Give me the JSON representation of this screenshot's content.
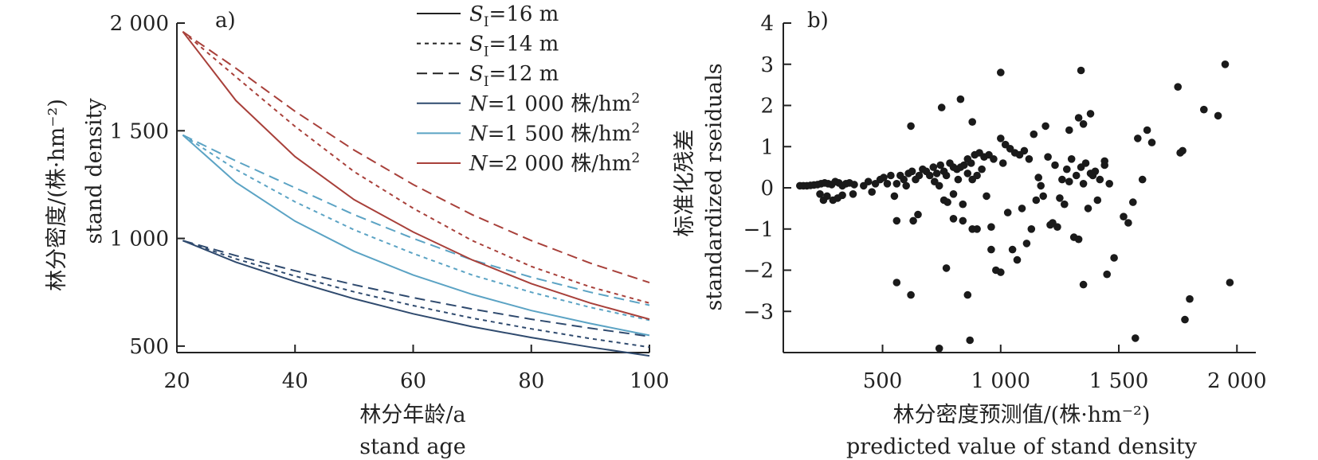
{
  "chart_data": [
    {
      "type": "line",
      "panel_label": "a)",
      "xlabel_cn": "林分年龄/a",
      "xlabel_en": "stand age",
      "ylabel_cn": "林分密度/(株·hm⁻²)",
      "ylabel_en": "stand density",
      "xlim": [
        20,
        100
      ],
      "ylim": [
        470,
        2000
      ],
      "xticks": [
        20,
        40,
        60,
        80,
        100
      ],
      "xtick_labels": [
        "20",
        "40",
        "60",
        "80",
        "100"
      ],
      "yticks": [
        500,
        1000,
        1500,
        2000
      ],
      "ytick_labels": [
        "500",
        "1 000",
        "1 500",
        "2 000"
      ],
      "grid": false,
      "legend_position": "top-right",
      "legend": [
        {
          "prefix": "S",
          "sub": "I",
          "text": "=16 m",
          "dash": "solid",
          "color": "#222222"
        },
        {
          "prefix": "S",
          "sub": "I",
          "text": "=14 m",
          "dash": "dotted",
          "color": "#222222"
        },
        {
          "prefix": "S",
          "sub": "I",
          "text": "=12 m",
          "dash": "dashed",
          "color": "#222222"
        },
        {
          "prefix": "N",
          "text": "=1 000 株/hm",
          "sup": "2",
          "dash": "solid",
          "color": "#2f4a6e"
        },
        {
          "prefix": "N",
          "text": "=1 500 株/hm",
          "sup": "2",
          "dash": "solid",
          "color": "#5ba3c4"
        },
        {
          "prefix": "N",
          "text": "=2 000 株/hm",
          "sup": "2",
          "dash": "solid",
          "color": "#a8403a"
        }
      ],
      "x": [
        21,
        30,
        40,
        50,
        60,
        70,
        80,
        90,
        100
      ],
      "series": [
        {
          "name": "N=1 000 株/hm² S_I=16 m",
          "color": "#2f4a6e",
          "dash": "solid",
          "values": [
            990,
            890,
            800,
            720,
            650,
            590,
            540,
            495,
            455
          ]
        },
        {
          "name": "N=1 000 株/hm² S_I=14 m",
          "color": "#2f4a6e",
          "dash": "dotted",
          "values": [
            990,
            905,
            825,
            752,
            688,
            630,
            580,
            535,
            495
          ]
        },
        {
          "name": "N=1 000 株/hm² S_I=12 m",
          "color": "#2f4a6e",
          "dash": "dashed",
          "values": [
            990,
            920,
            850,
            785,
            725,
            672,
            625,
            583,
            545
          ]
        },
        {
          "name": "N=1 500 株/hm² S_I=16 m",
          "color": "#5ba3c4",
          "dash": "solid",
          "values": [
            1480,
            1260,
            1080,
            940,
            830,
            740,
            665,
            605,
            550
          ]
        },
        {
          "name": "N=1 500 株/hm² S_I=14 m",
          "color": "#5ba3c4",
          "dash": "dotted",
          "values": [
            1480,
            1320,
            1170,
            1040,
            930,
            830,
            750,
            680,
            620
          ]
        },
        {
          "name": "N=1 500 株/hm² S_I=12 m",
          "color": "#5ba3c4",
          "dash": "dashed",
          "values": [
            1480,
            1360,
            1235,
            1110,
            1000,
            900,
            820,
            750,
            690
          ]
        },
        {
          "name": "N=2 000 株/hm² S_I=16 m",
          "color": "#a8403a",
          "dash": "solid",
          "values": [
            1960,
            1640,
            1380,
            1180,
            1030,
            900,
            790,
            700,
            625
          ]
        },
        {
          "name": "N=2 000 株/hm² S_I=14 m",
          "color": "#a8403a",
          "dash": "dotted",
          "values": [
            1960,
            1750,
            1520,
            1310,
            1140,
            990,
            870,
            775,
            700
          ]
        },
        {
          "name": "N=2 000 株/hm² S_I=12 m",
          "color": "#a8403a",
          "dash": "dashed",
          "values": [
            1960,
            1790,
            1590,
            1410,
            1250,
            1110,
            990,
            885,
            795
          ]
        }
      ]
    },
    {
      "type": "scatter",
      "panel_label": "b)",
      "xlabel_cn": "林分密度预测值/(株·hm⁻²)",
      "xlabel_en": "predicted value of stand density",
      "ylabel_cn": "标准化残差",
      "ylabel_en": "standardized rseiduals",
      "xlim": [
        80,
        2080
      ],
      "ylim": [
        -4,
        4
      ],
      "xticks": [
        500,
        1000,
        1500,
        2000
      ],
      "xtick_labels": [
        "500",
        "1 000",
        "1 500",
        "2 000"
      ],
      "yticks": [
        -3,
        -2,
        -1,
        0,
        1,
        2,
        3,
        4
      ],
      "ytick_labels": [
        "−3",
        "−2",
        "−1",
        "0",
        "1",
        "2",
        "3",
        "4"
      ],
      "grid": false,
      "point_color": "#1a1a1a",
      "points": [
        [
          150,
          0.05
        ],
        [
          165,
          0.05
        ],
        [
          180,
          0.05
        ],
        [
          195,
          0.06
        ],
        [
          210,
          0.07
        ],
        [
          225,
          0.08
        ],
        [
          240,
          0.1
        ],
        [
          255,
          0.12
        ],
        [
          270,
          0.1
        ],
        [
          285,
          0.08
        ],
        [
          300,
          0.15
        ],
        [
          315,
          0.12
        ],
        [
          330,
          0.05
        ],
        [
          345,
          0.1
        ],
        [
          360,
          0.12
        ],
        [
          380,
          0.08
        ],
        [
          235,
          -0.15
        ],
        [
          250,
          -0.3
        ],
        [
          265,
          -0.2
        ],
        [
          290,
          -0.3
        ],
        [
          310,
          -0.25
        ],
        [
          330,
          -0.18
        ],
        [
          375,
          -0.15
        ],
        [
          420,
          0.05
        ],
        [
          440,
          0.15
        ],
        [
          455,
          -0.1
        ],
        [
          470,
          0.1
        ],
        [
          490,
          0.2
        ],
        [
          505,
          0.25
        ],
        [
          520,
          0.1
        ],
        [
          535,
          0.3
        ],
        [
          550,
          -0.2
        ],
        [
          560,
          0.1
        ],
        [
          575,
          0.3
        ],
        [
          590,
          0.2
        ],
        [
          600,
          0.05
        ],
        [
          610,
          0.35
        ],
        [
          625,
          0.4
        ],
        [
          640,
          0.2
        ],
        [
          655,
          0.3
        ],
        [
          670,
          0.45
        ],
        [
          685,
          0.4
        ],
        [
          700,
          0.3
        ],
        [
          715,
          0.5
        ],
        [
          730,
          0.35
        ],
        [
          745,
          0.55
        ],
        [
          760,
          0.4
        ],
        [
          770,
          0.3
        ],
        [
          785,
          0.6
        ],
        [
          800,
          0.5
        ],
        [
          815,
          0.45
        ],
        [
          830,
          0.5
        ],
        [
          845,
          0.55
        ],
        [
          860,
          0.7
        ],
        [
          875,
          0.6
        ],
        [
          890,
          0.8
        ],
        [
          910,
          0.85
        ],
        [
          930,
          0.75
        ],
        [
          950,
          0.8
        ],
        [
          970,
          0.7
        ],
        [
          720,
          0.15
        ],
        [
          740,
          0.05
        ],
        [
          760,
          -0.3
        ],
        [
          775,
          -0.35
        ],
        [
          800,
          -0.15
        ],
        [
          820,
          0.2
        ],
        [
          840,
          -0.4
        ],
        [
          860,
          0.35
        ],
        [
          880,
          0.2
        ],
        [
          900,
          0.3
        ],
        [
          1000,
          1.2
        ],
        [
          1020,
          1.05
        ],
        [
          1040,
          0.95
        ],
        [
          1060,
          0.85
        ],
        [
          1080,
          0.8
        ],
        [
          1100,
          0.9
        ],
        [
          1120,
          0.7
        ],
        [
          1140,
          1.3
        ],
        [
          1160,
          0.25
        ],
        [
          1180,
          -0.2
        ],
        [
          1200,
          0.75
        ],
        [
          1220,
          -0.85
        ],
        [
          1240,
          -0.95
        ],
        [
          1260,
          0.2
        ],
        [
          1280,
          0.45
        ],
        [
          1300,
          0.7
        ],
        [
          1320,
          0.3
        ],
        [
          1340,
          0.5
        ],
        [
          1360,
          0.6
        ],
        [
          1380,
          0.35
        ],
        [
          1400,
          0.4
        ],
        [
          1420,
          0.2
        ],
        [
          1440,
          0.55
        ],
        [
          1460,
          0.1
        ],
        [
          1230,
          0.55
        ],
        [
          1250,
          -0.25
        ],
        [
          1270,
          -0.4
        ],
        [
          1290,
          0.15
        ],
        [
          1310,
          -1.2
        ],
        [
          1330,
          -1.25
        ],
        [
          1350,
          0.1
        ],
        [
          1370,
          -0.5
        ],
        [
          1390,
          0.3
        ],
        [
          1410,
          -0.3
        ],
        [
          1010,
          0.6
        ],
        [
          1030,
          -0.6
        ],
        [
          1050,
          -1.5
        ],
        [
          1070,
          -1.75
        ],
        [
          1090,
          -0.5
        ],
        [
          1110,
          -1.35
        ],
        [
          1130,
          -1.0
        ],
        [
          1150,
          -0.3
        ],
        [
          1170,
          0.05
        ],
        [
          1190,
          1.5
        ],
        [
          1210,
          -0.9
        ],
        [
          1290,
          1.4
        ],
        [
          1330,
          1.7
        ],
        [
          1350,
          1.55
        ],
        [
          1380,
          1.8
        ],
        [
          1340,
          2.85
        ],
        [
          1000,
          2.8
        ],
        [
          830,
          2.15
        ],
        [
          750,
          1.95
        ],
        [
          620,
          1.5
        ],
        [
          880,
          1.6
        ],
        [
          920,
          0.45
        ],
        [
          940,
          -0.2
        ],
        [
          960,
          -1.5
        ],
        [
          980,
          -2.0
        ],
        [
          1000,
          -2.05
        ],
        [
          960,
          -0.95
        ],
        [
          900,
          -1.0
        ],
        [
          880,
          -1.0
        ],
        [
          860,
          -2.6
        ],
        [
          840,
          -0.8
        ],
        [
          800,
          -0.75
        ],
        [
          770,
          -1.95
        ],
        [
          740,
          -3.9
        ],
        [
          870,
          -3.7
        ],
        [
          650,
          -0.65
        ],
        [
          630,
          -0.8
        ],
        [
          620,
          -2.6
        ],
        [
          560,
          -2.3
        ],
        [
          560,
          -0.8
        ],
        [
          1480,
          -1.7
        ],
        [
          1520,
          -0.7
        ],
        [
          1540,
          -0.85
        ],
        [
          1560,
          -0.35
        ],
        [
          1570,
          -3.65
        ],
        [
          1580,
          1.2
        ],
        [
          1600,
          0.2
        ],
        [
          1620,
          1.4
        ],
        [
          1640,
          1.1
        ],
        [
          1750,
          2.45
        ],
        [
          1760,
          0.85
        ],
        [
          1770,
          0.9
        ],
        [
          1780,
          -3.2
        ],
        [
          1800,
          -2.7
        ],
        [
          1860,
          1.9
        ],
        [
          1920,
          1.75
        ],
        [
          1950,
          3.0
        ],
        [
          1970,
          -2.3
        ],
        [
          1450,
          -2.1
        ],
        [
          1350,
          -2.35
        ],
        [
          1440,
          0.65
        ]
      ]
    }
  ]
}
